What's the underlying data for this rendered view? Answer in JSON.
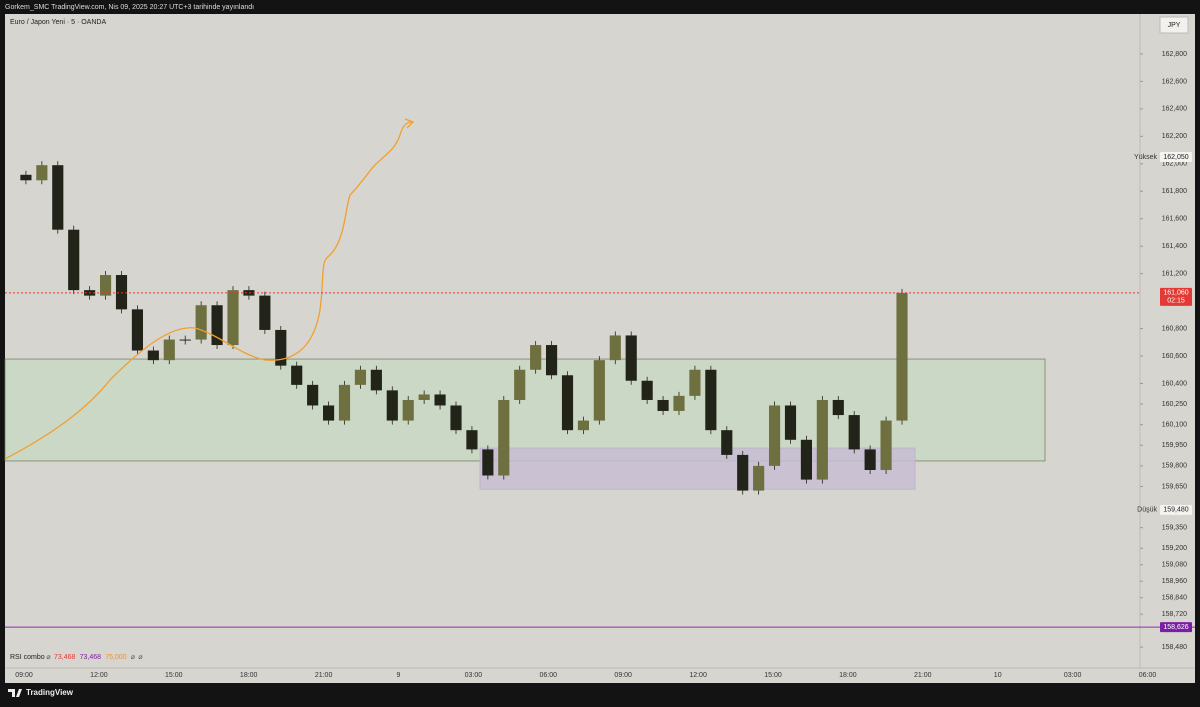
{
  "header": {
    "title": "Gorkem_SMC TradingView.com, Nis 09, 2025 20:27 UTC+3 tarihinde yayınlandı"
  },
  "symbol": "Euro / Japon Yeni · 5 · OANDA",
  "currency": "JPY",
  "indicator": [
    "RSI combo",
    "⌀",
    "73,468",
    "73,468",
    "75,000",
    "⌀",
    "⌀"
  ],
  "price_axis": {
    "ylim": [
      158.328,
      163.091
    ],
    "yticks": [
      {
        "value": 162.8,
        "label": "162,800"
      },
      {
        "value": 162.6,
        "label": "162,600"
      },
      {
        "value": 162.4,
        "label": "162,400"
      },
      {
        "value": 162.2,
        "label": "162,200"
      },
      {
        "value": 162.0,
        "label": "162,000"
      },
      {
        "value": 161.8,
        "label": "161,800"
      },
      {
        "value": 161.6,
        "label": "161,600"
      },
      {
        "value": 161.4,
        "label": "161,400"
      },
      {
        "value": 161.2,
        "label": "161,200"
      },
      {
        "value": 160.8,
        "label": "160,800"
      },
      {
        "value": 160.6,
        "label": "160,600"
      },
      {
        "value": 160.4,
        "label": "160,400"
      },
      {
        "value": 160.25,
        "label": "160,250"
      },
      {
        "value": 160.1,
        "label": "160,100"
      },
      {
        "value": 159.95,
        "label": "159,950"
      },
      {
        "value": 159.8,
        "label": "159,800"
      },
      {
        "value": 159.65,
        "label": "159,650"
      },
      {
        "value": 159.35,
        "label": "159,350"
      },
      {
        "value": 159.2,
        "label": "159,200"
      },
      {
        "value": 159.08,
        "label": "159,080"
      },
      {
        "value": 158.96,
        "label": "158,960"
      },
      {
        "value": 158.84,
        "label": "158,840"
      },
      {
        "value": 158.72,
        "label": "158,720"
      },
      {
        "value": 158.48,
        "label": "158,480"
      }
    ]
  },
  "time_axis": {
    "labels": [
      "09:00",
      "12:00",
      "15:00",
      "18:00",
      "21:00",
      "9",
      "03:00",
      "06:00",
      "09:00",
      "12:00",
      "15:00",
      "18:00",
      "21:00",
      "10",
      "03:00",
      "06:00"
    ]
  },
  "markers": {
    "high": {
      "label": "Yüksek",
      "price": {
        "value": 162.05,
        "label": "162,050"
      }
    },
    "low": {
      "label": "Düşük",
      "price": {
        "value": 159.48,
        "label": "159,480"
      }
    },
    "last": {
      "price": {
        "value": 161.06,
        "label": "161,060"
      },
      "countdown": "02:15"
    },
    "level": {
      "price": {
        "value": 158.626,
        "label": "158,626"
      }
    }
  },
  "zones": [
    {
      "top": 160.578,
      "bottom": 159.836,
      "color": "#c9d8c3"
    },
    {
      "top": 159.93,
      "bottom": 159.63,
      "color": "#c8bdd3"
    }
  ],
  "chart_data": {
    "type": "candlestick",
    "color": "#22241a",
    "values": [
      161.92,
      161.88,
      161.99,
      161.52,
      161.08,
      161.04,
      161.19,
      160.94,
      160.64,
      160.57,
      160.72,
      160.72,
      160.97,
      160.68,
      161.08,
      161.04,
      160.79,
      160.53,
      160.39,
      160.24,
      160.13,
      160.39,
      160.5,
      160.35,
      160.13,
      160.28,
      160.32,
      160.24,
      160.06,
      159.92,
      159.73,
      160.28,
      160.5,
      160.68,
      160.46,
      160.06,
      160.13,
      160.57,
      160.75,
      160.42,
      160.28,
      160.2,
      160.31,
      160.5,
      160.06,
      159.88,
      159.62,
      159.8,
      160.24,
      159.99,
      159.7,
      160.28,
      160.17,
      159.92,
      159.77,
      160.13,
      161.06
    ]
  },
  "footer": {
    "brand": "TradingView"
  }
}
